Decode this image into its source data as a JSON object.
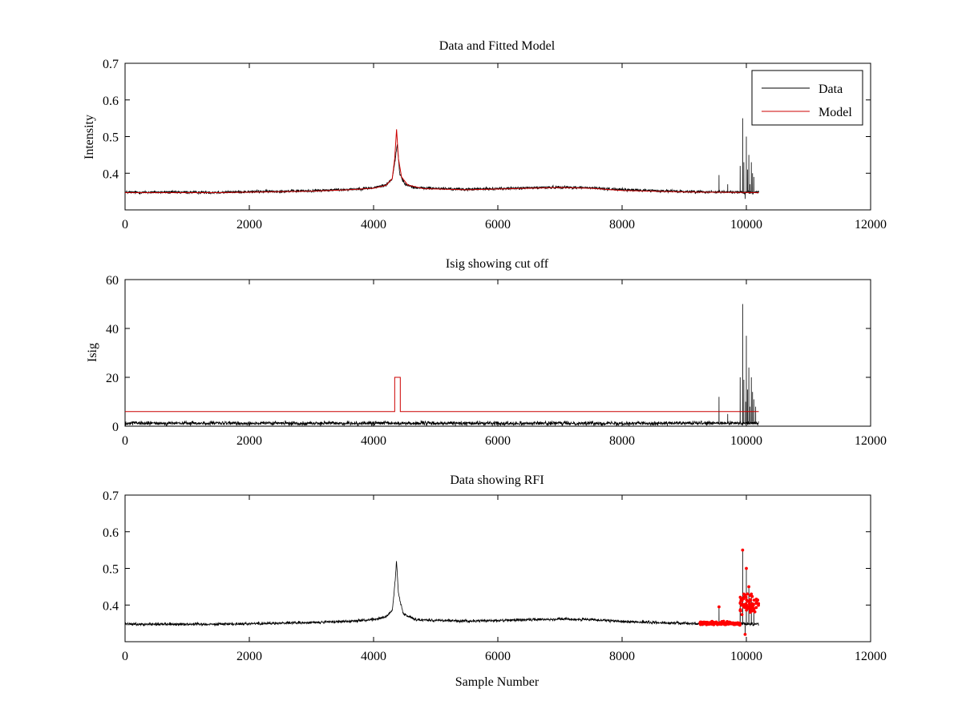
{
  "figure": {
    "background": "#ffffff",
    "data_color": "#000000",
    "model_color": "#cc0000",
    "rfi_color": "#ff0000"
  },
  "chart_data": [
    {
      "type": "line",
      "title": "Data and Fitted Model",
      "xlabel": "",
      "ylabel": "Intensity",
      "xlim": [
        0,
        12000
      ],
      "ylim": [
        0.3,
        0.7
      ],
      "xticks": [
        0,
        2000,
        4000,
        6000,
        8000,
        10000,
        12000
      ],
      "xtick_labels": [
        "0",
        "2000",
        "4000",
        "6000",
        "8000",
        "10000",
        "12000"
      ],
      "yticks": [
        0.4,
        0.5,
        0.6,
        0.7
      ],
      "ytick_labels": [
        "0.4",
        "0.5",
        "0.6",
        "0.7"
      ],
      "legend": {
        "position": "top-right",
        "entries": [
          "Data",
          "Model"
        ]
      },
      "series": [
        {
          "name": "Data",
          "color": "#000000",
          "kind": "noisy",
          "baseline": [
            [
              0,
              0.348
            ],
            [
              1500,
              0.348
            ],
            [
              3000,
              0.352
            ],
            [
              3600,
              0.356
            ],
            [
              4000,
              0.36
            ],
            [
              4200,
              0.368
            ],
            [
              4300,
              0.385
            ],
            [
              4350,
              0.44
            ],
            [
              4380,
              0.48
            ],
            [
              4420,
              0.4
            ],
            [
              4500,
              0.37
            ],
            [
              4700,
              0.36
            ],
            [
              5500,
              0.356
            ],
            [
              6500,
              0.36
            ],
            [
              7000,
              0.362
            ],
            [
              7500,
              0.36
            ],
            [
              8000,
              0.355
            ],
            [
              9000,
              0.35
            ],
            [
              10200,
              0.348
            ]
          ],
          "noise": 0.006,
          "n_points": 10200,
          "spikes": [
            [
              9560,
              0.395
            ],
            [
              9700,
              0.37
            ],
            [
              9900,
              0.42
            ],
            [
              9940,
              0.55
            ],
            [
              9960,
              0.43
            ],
            [
              9980,
              0.33
            ],
            [
              10000,
              0.5
            ],
            [
              10020,
              0.41
            ],
            [
              10040,
              0.45
            ],
            [
              10060,
              0.37
            ],
            [
              10080,
              0.43
            ],
            [
              10100,
              0.4
            ],
            [
              10120,
              0.39
            ]
          ]
        },
        {
          "name": "Model",
          "color": "#cc0000",
          "kind": "smooth",
          "points": [
            [
              0,
              0.347
            ],
            [
              1500,
              0.347
            ],
            [
              3000,
              0.351
            ],
            [
              3600,
              0.355
            ],
            [
              4000,
              0.359
            ],
            [
              4200,
              0.367
            ],
            [
              4300,
              0.385
            ],
            [
              4340,
              0.44
            ],
            [
              4370,
              0.52
            ],
            [
              4400,
              0.44
            ],
            [
              4450,
              0.39
            ],
            [
              4550,
              0.368
            ],
            [
              4800,
              0.358
            ],
            [
              5500,
              0.355
            ],
            [
              6500,
              0.359
            ],
            [
              7000,
              0.361
            ],
            [
              7500,
              0.359
            ],
            [
              8000,
              0.353
            ],
            [
              9000,
              0.349
            ],
            [
              10200,
              0.347
            ]
          ]
        }
      ]
    },
    {
      "type": "line",
      "title": "Isig showing cut off",
      "xlabel": "",
      "ylabel": "Isig",
      "xlim": [
        0,
        12000
      ],
      "ylim": [
        0,
        60
      ],
      "xticks": [
        0,
        2000,
        4000,
        6000,
        8000,
        10000,
        12000
      ],
      "xtick_labels": [
        "0",
        "2000",
        "4000",
        "6000",
        "8000",
        "10000",
        "12000"
      ],
      "yticks": [
        0,
        20,
        40,
        60
      ],
      "ytick_labels": [
        "0",
        "20",
        "40",
        "60"
      ],
      "series": [
        {
          "name": "Isig",
          "color": "#000000",
          "kind": "noisy",
          "baseline": [
            [
              0,
              1.2
            ],
            [
              10200,
              1.2
            ]
          ],
          "noise": 1.2,
          "n_points": 10200,
          "spikes": [
            [
              9560,
              12
            ],
            [
              9700,
              5
            ],
            [
              9900,
              20
            ],
            [
              9940,
              50
            ],
            [
              9960,
              19
            ],
            [
              9990,
              10
            ],
            [
              10000,
              37
            ],
            [
              10020,
              15
            ],
            [
              10040,
              24
            ],
            [
              10060,
              8
            ],
            [
              10080,
              20
            ],
            [
              10100,
              14
            ],
            [
              10120,
              11
            ],
            [
              10150,
              8
            ]
          ]
        },
        {
          "name": "Cut off",
          "color": "#cc0000",
          "kind": "step",
          "points": [
            [
              0,
              6
            ],
            [
              4340,
              6
            ],
            [
              4340,
              20
            ],
            [
              4430,
              20
            ],
            [
              4430,
              6
            ],
            [
              10200,
              6
            ]
          ]
        }
      ]
    },
    {
      "type": "line",
      "title": "Data showing RFI",
      "xlabel": "Sample Number",
      "ylabel": "",
      "xlim": [
        0,
        12000
      ],
      "ylim": [
        0.3,
        0.7
      ],
      "xticks": [
        0,
        2000,
        4000,
        6000,
        8000,
        10000,
        12000
      ],
      "xtick_labels": [
        "0",
        "2000",
        "4000",
        "6000",
        "8000",
        "10000",
        "12000"
      ],
      "yticks": [
        0.4,
        0.5,
        0.6,
        0.7
      ],
      "ytick_labels": [
        "0.4",
        "0.5",
        "0.6",
        "0.7"
      ],
      "series": [
        {
          "name": "Data",
          "color": "#000000",
          "kind": "noisy",
          "baseline": [
            [
              0,
              0.348
            ],
            [
              1500,
              0.348
            ],
            [
              3000,
              0.352
            ],
            [
              3600,
              0.356
            ],
            [
              4000,
              0.36
            ],
            [
              4200,
              0.368
            ],
            [
              4300,
              0.385
            ],
            [
              4340,
              0.45
            ],
            [
              4370,
              0.52
            ],
            [
              4400,
              0.43
            ],
            [
              4480,
              0.375
            ],
            [
              4700,
              0.36
            ],
            [
              5500,
              0.356
            ],
            [
              6500,
              0.36
            ],
            [
              7000,
              0.362
            ],
            [
              7500,
              0.36
            ],
            [
              8000,
              0.355
            ],
            [
              9000,
              0.35
            ],
            [
              10200,
              0.348
            ]
          ],
          "noise": 0.006,
          "n_points": 10200,
          "spikes": [
            [
              9560,
              0.395
            ],
            [
              9900,
              0.42
            ],
            [
              9940,
              0.55
            ],
            [
              9980,
              0.32
            ],
            [
              10000,
              0.5
            ],
            [
              10040,
              0.45
            ],
            [
              10080,
              0.43
            ],
            [
              10120,
              0.39
            ]
          ]
        },
        {
          "name": "RFI",
          "color": "#ff0000",
          "kind": "markers",
          "clusters": [
            {
              "x_range": [
                9250,
                9900
              ],
              "y_center": 0.35,
              "spread": 0.006,
              "count": 140
            },
            {
              "x_range": [
                9900,
                10200
              ],
              "y_center": 0.4,
              "spread": 0.04,
              "count": 70
            }
          ],
          "points": [
            [
              9560,
              0.395
            ],
            [
              9940,
              0.55
            ],
            [
              9980,
              0.32
            ],
            [
              10000,
              0.5
            ],
            [
              10040,
              0.45
            ],
            [
              10080,
              0.43
            ],
            [
              10120,
              0.39
            ],
            [
              9960,
              0.43
            ],
            [
              10020,
              0.41
            ]
          ]
        }
      ]
    }
  ]
}
